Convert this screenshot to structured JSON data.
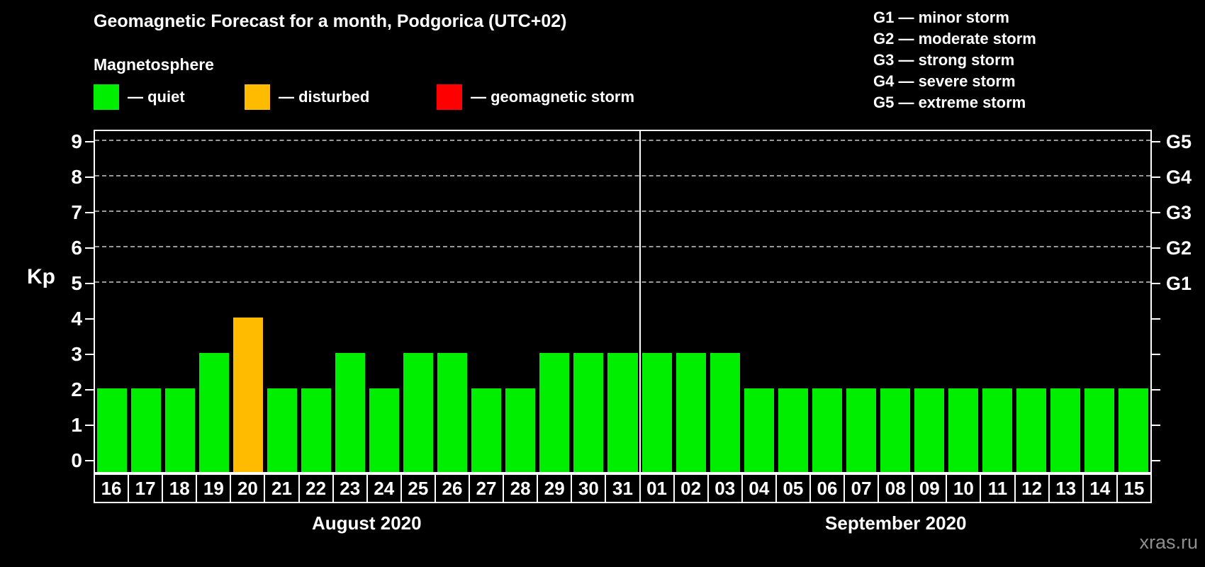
{
  "header": {
    "title": "Geomagnetic Forecast for a month, Podgorica (UTC+02)",
    "subtitle": "Magnetosphere"
  },
  "legend": {
    "items": [
      {
        "name": "quiet",
        "color": "#00ee00",
        "label": "— quiet"
      },
      {
        "name": "disturbed",
        "color": "#ffbb00",
        "label": "— disturbed"
      },
      {
        "name": "storm",
        "color": "#ff0000",
        "label": "— geomagnetic storm"
      }
    ]
  },
  "g_scale_legend": {
    "lines": [
      "G1 — minor storm",
      "G2 — moderate storm",
      "G3 — strong storm",
      "G4 — severe storm",
      "G5 — extreme storm"
    ]
  },
  "watermark": "xras.ru",
  "chart_data": {
    "type": "bar",
    "title": "Geomagnetic Forecast for a month, Podgorica (UTC+02)",
    "ylabel": "Kp",
    "ylim": [
      0,
      9
    ],
    "yticks": [
      0,
      1,
      2,
      3,
      4,
      5,
      6,
      7,
      8,
      9
    ],
    "gridlines_at": [
      5,
      6,
      7,
      8,
      9
    ],
    "grid_style": "horizontal dashed gray lines at storm levels only",
    "legend_position": "top",
    "right_axis": [
      {
        "kp": 5,
        "label": "G1"
      },
      {
        "kp": 6,
        "label": "G2"
      },
      {
        "kp": 7,
        "label": "G3"
      },
      {
        "kp": 8,
        "label": "G4"
      },
      {
        "kp": 9,
        "label": "G5"
      }
    ],
    "status_colors": {
      "quiet": "#00ee00",
      "disturbed": "#ffbb00",
      "storm": "#ff0000"
    },
    "months": [
      {
        "label": "August 2020",
        "points": [
          {
            "day": "16",
            "value": 2,
            "status": "quiet"
          },
          {
            "day": "17",
            "value": 2,
            "status": "quiet"
          },
          {
            "day": "18",
            "value": 2,
            "status": "quiet"
          },
          {
            "day": "19",
            "value": 3,
            "status": "quiet"
          },
          {
            "day": "20",
            "value": 4,
            "status": "disturbed"
          },
          {
            "day": "21",
            "value": 2,
            "status": "quiet"
          },
          {
            "day": "22",
            "value": 2,
            "status": "quiet"
          },
          {
            "day": "23",
            "value": 3,
            "status": "quiet"
          },
          {
            "day": "24",
            "value": 2,
            "status": "quiet"
          },
          {
            "day": "25",
            "value": 3,
            "status": "quiet"
          },
          {
            "day": "26",
            "value": 3,
            "status": "quiet"
          },
          {
            "day": "27",
            "value": 2,
            "status": "quiet"
          },
          {
            "day": "28",
            "value": 2,
            "status": "quiet"
          },
          {
            "day": "29",
            "value": 3,
            "status": "quiet"
          },
          {
            "day": "30",
            "value": 3,
            "status": "quiet"
          },
          {
            "day": "31",
            "value": 3,
            "status": "quiet"
          }
        ]
      },
      {
        "label": "September 2020",
        "points": [
          {
            "day": "01",
            "value": 3,
            "status": "quiet"
          },
          {
            "day": "02",
            "value": 3,
            "status": "quiet"
          },
          {
            "day": "03",
            "value": 3,
            "status": "quiet"
          },
          {
            "day": "04",
            "value": 2,
            "status": "quiet"
          },
          {
            "day": "05",
            "value": 2,
            "status": "quiet"
          },
          {
            "day": "06",
            "value": 2,
            "status": "quiet"
          },
          {
            "day": "07",
            "value": 2,
            "status": "quiet"
          },
          {
            "day": "08",
            "value": 2,
            "status": "quiet"
          },
          {
            "day": "09",
            "value": 2,
            "status": "quiet"
          },
          {
            "day": "10",
            "value": 2,
            "status": "quiet"
          },
          {
            "day": "11",
            "value": 2,
            "status": "quiet"
          },
          {
            "day": "12",
            "value": 2,
            "status": "quiet"
          },
          {
            "day": "13",
            "value": 2,
            "status": "quiet"
          },
          {
            "day": "14",
            "value": 2,
            "status": "quiet"
          },
          {
            "day": "15",
            "value": 2,
            "status": "quiet"
          }
        ]
      }
    ]
  }
}
